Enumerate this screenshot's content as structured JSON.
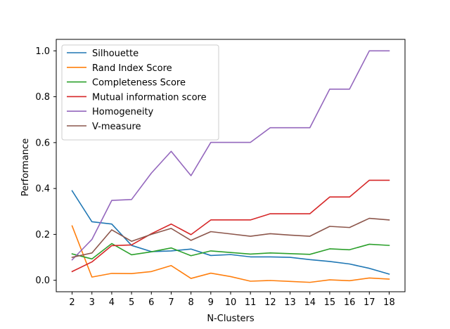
{
  "chart_data": {
    "type": "line",
    "title": "",
    "xlabel": "N-Clusters",
    "ylabel": "Performance",
    "x": [
      2,
      3,
      4,
      5,
      6,
      7,
      8,
      9,
      10,
      11,
      12,
      13,
      14,
      15,
      16,
      17,
      18
    ],
    "x_ticks": [
      "2",
      "3",
      "4",
      "5",
      "6",
      "7",
      "8",
      "9",
      "10",
      "11",
      "12",
      "13",
      "14",
      "15",
      "16",
      "17",
      "18"
    ],
    "y_ticks": [
      "0.0",
      "0.2",
      "0.4",
      "0.6",
      "0.8",
      "1.0"
    ],
    "ylim": [
      -0.05,
      1.05
    ],
    "xlim": [
      1.2,
      18.8
    ],
    "grid": false,
    "legend_position": "top-left",
    "series": [
      {
        "name": "Silhouette",
        "color": "#1f77b4",
        "values": [
          0.39,
          0.255,
          0.245,
          0.152,
          0.125,
          0.128,
          0.136,
          0.108,
          0.112,
          0.102,
          0.102,
          0.1,
          0.09,
          0.082,
          0.071,
          0.052,
          0.027
        ]
      },
      {
        "name": "Rand Index Score",
        "color": "#ff7f0e",
        "values": [
          0.237,
          0.014,
          0.03,
          0.029,
          0.038,
          0.064,
          0.008,
          0.031,
          0.016,
          -0.004,
          -0.001,
          -0.005,
          -0.009,
          0.002,
          -0.002,
          0.01,
          0.005
        ]
      },
      {
        "name": "Completeness Score",
        "color": "#2ca02c",
        "values": [
          0.115,
          0.093,
          0.16,
          0.111,
          0.124,
          0.141,
          0.107,
          0.128,
          0.121,
          0.114,
          0.119,
          0.116,
          0.113,
          0.137,
          0.133,
          0.157,
          0.152
        ]
      },
      {
        "name": "Mutual information score",
        "color": "#d62728",
        "values": [
          0.038,
          0.08,
          0.151,
          0.154,
          0.203,
          0.245,
          0.199,
          0.263,
          0.263,
          0.263,
          0.29,
          0.29,
          0.29,
          0.363,
          0.363,
          0.436,
          0.436
        ]
      },
      {
        "name": "Homogeneity",
        "color": "#9467bd",
        "values": [
          0.089,
          0.178,
          0.348,
          0.352,
          0.467,
          0.562,
          0.456,
          0.601,
          0.601,
          0.601,
          0.665,
          0.665,
          0.665,
          0.833,
          0.833,
          1.0,
          1.0
        ]
      },
      {
        "name": "V-measure",
        "color": "#8c564b",
        "values": [
          0.1,
          0.119,
          0.22,
          0.17,
          0.2,
          0.226,
          0.174,
          0.212,
          0.202,
          0.192,
          0.203,
          0.197,
          0.192,
          0.235,
          0.23,
          0.27,
          0.263
        ]
      }
    ]
  }
}
